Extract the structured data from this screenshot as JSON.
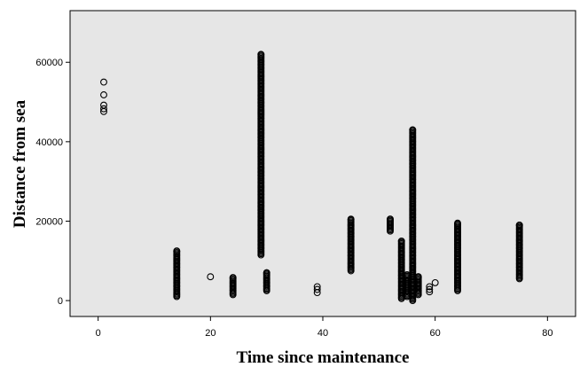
{
  "chart_data": {
    "type": "scatter",
    "title": "",
    "xlabel": "Time since maintenance",
    "ylabel": "Distance from sea",
    "xlim": [
      -5,
      85
    ],
    "ylim": [
      -4000,
      73000
    ],
    "xticks": [
      0,
      20,
      40,
      60,
      80
    ],
    "yticks": [
      0,
      20000,
      40000,
      60000
    ],
    "xtick_labels": [
      "0",
      "20",
      "40",
      "60",
      "80"
    ],
    "ytick_labels": [
      "0",
      "20000",
      "40000",
      "60000"
    ],
    "grid": false,
    "legend": "none",
    "plot_background": "#e6e6e6",
    "marker": "open-circle",
    "marker_color": "#000000",
    "points": [
      {
        "x": 1,
        "y": 55000
      },
      {
        "x": 1,
        "y": 51800
      },
      {
        "x": 1,
        "y": 49200
      },
      {
        "x": 1,
        "y": 48300
      },
      {
        "x": 1,
        "y": 47600
      },
      {
        "x": 20,
        "y": 6000
      },
      {
        "x": 39,
        "y": 3500
      },
      {
        "x": 39,
        "y": 2800
      },
      {
        "x": 39,
        "y": 2000
      },
      {
        "x": 59,
        "y": 3500
      },
      {
        "x": 59,
        "y": 2800
      },
      {
        "x": 59,
        "y": 2200
      },
      {
        "x": 60,
        "y": 4500
      }
    ],
    "clusters": [
      {
        "x": 14,
        "y_min": 1000,
        "y_max": 12500
      },
      {
        "x": 24,
        "y_min": 1500,
        "y_max": 5800
      },
      {
        "x": 29,
        "y_min": 11500,
        "y_max": 62000
      },
      {
        "x": 30,
        "y_min": 2500,
        "y_max": 7000
      },
      {
        "x": 45,
        "y_min": 7500,
        "y_max": 20500
      },
      {
        "x": 52,
        "y_min": 17500,
        "y_max": 20500
      },
      {
        "x": 54,
        "y_min": 500,
        "y_max": 15000
      },
      {
        "x": 55,
        "y_min": 1000,
        "y_max": 6500
      },
      {
        "x": 56,
        "y_min": 0,
        "y_max": 43000
      },
      {
        "x": 57,
        "y_min": 1500,
        "y_max": 6000
      },
      {
        "x": 64,
        "y_min": 2500,
        "y_max": 19500
      },
      {
        "x": 75,
        "y_min": 5500,
        "y_max": 19000
      }
    ]
  }
}
